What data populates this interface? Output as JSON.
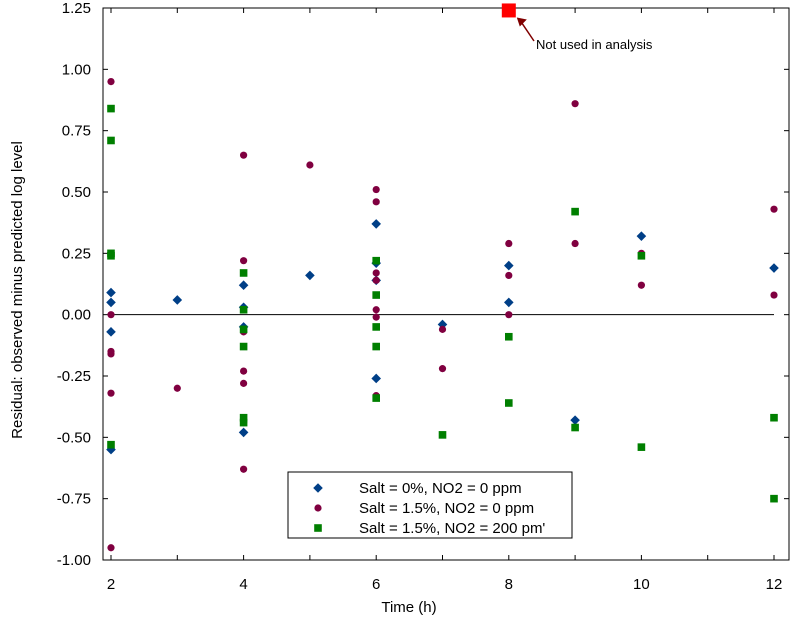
{
  "chart_data": {
    "type": "scatter",
    "title": "",
    "xlabel": "Time (h)",
    "ylabel": "Residual: observed  minus predicted log level",
    "xlim": [
      1.9,
      12.3
    ],
    "ylim": [
      -1.0,
      1.25
    ],
    "x_ticks": [
      "2",
      "4",
      "6",
      "8",
      "10",
      "12"
    ],
    "y_ticks": [
      "1.25",
      "1.00",
      "0.75",
      "0.50",
      "0.25",
      "0.00",
      "-0.25",
      "-0.50",
      "-0.75",
      "-1.00"
    ],
    "zero_line": true,
    "grid": false,
    "legend_position": "bottom-center",
    "series": [
      {
        "name": "Salt = 0%, NO2 = 0 ppm",
        "color": "#003f87",
        "marker": "diamond",
        "points": [
          [
            2,
            0.09
          ],
          [
            2,
            0.05
          ],
          [
            2,
            -0.07
          ],
          [
            2,
            -0.55
          ],
          [
            3,
            0.06
          ],
          [
            4,
            0.12
          ],
          [
            4,
            0.03
          ],
          [
            4,
            -0.05
          ],
          [
            4,
            -0.48
          ],
          [
            5,
            0.16
          ],
          [
            6,
            0.37
          ],
          [
            6,
            0.21
          ],
          [
            6,
            0.14
          ],
          [
            6,
            -0.26
          ],
          [
            7,
            -0.04
          ],
          [
            8,
            0.2
          ],
          [
            8,
            0.05
          ],
          [
            9,
            -0.43
          ],
          [
            10,
            0.32
          ],
          [
            12,
            0.19
          ]
        ]
      },
      {
        "name": "Salt = 1.5%, NO2 = 0 ppm",
        "color": "#800040",
        "marker": "circle",
        "points": [
          [
            2,
            0.95
          ],
          [
            2,
            0.0
          ],
          [
            2,
            -0.15
          ],
          [
            2,
            -0.16
          ],
          [
            2,
            -0.32
          ],
          [
            2,
            -0.95
          ],
          [
            3,
            -0.3
          ],
          [
            4,
            0.65
          ],
          [
            4,
            0.22
          ],
          [
            4,
            -0.07
          ],
          [
            4,
            -0.23
          ],
          [
            4,
            -0.28
          ],
          [
            4,
            -0.44
          ],
          [
            4,
            -0.63
          ],
          [
            5,
            0.61
          ],
          [
            6,
            0.51
          ],
          [
            6,
            0.46
          ],
          [
            6,
            0.17
          ],
          [
            6,
            0.14
          ],
          [
            6,
            0.02
          ],
          [
            6,
            -0.01
          ],
          [
            6,
            -0.33
          ],
          [
            7,
            -0.06
          ],
          [
            7,
            -0.22
          ],
          [
            8,
            0.29
          ],
          [
            8,
            0.16
          ],
          [
            8,
            0.0
          ],
          [
            9,
            0.86
          ],
          [
            9,
            0.29
          ],
          [
            10,
            0.25
          ],
          [
            10,
            0.12
          ],
          [
            12,
            0.43
          ],
          [
            12,
            0.08
          ]
        ]
      },
      {
        "name": "Salt = 1.5%, NO2 = 200 pm'",
        "color": "#007f00",
        "marker": "square",
        "points": [
          [
            2,
            0.84
          ],
          [
            2,
            0.71
          ],
          [
            2,
            0.25
          ],
          [
            2,
            0.24
          ],
          [
            2,
            -0.53
          ],
          [
            4,
            0.17
          ],
          [
            4,
            0.02
          ],
          [
            4,
            -0.06
          ],
          [
            4,
            -0.13
          ],
          [
            4,
            -0.42
          ],
          [
            4,
            -0.44
          ],
          [
            6,
            0.22
          ],
          [
            6,
            0.08
          ],
          [
            6,
            -0.05
          ],
          [
            6,
            -0.13
          ],
          [
            6,
            -0.34
          ],
          [
            7,
            -0.49
          ],
          [
            8,
            -0.09
          ],
          [
            8,
            -0.36
          ],
          [
            9,
            0.42
          ],
          [
            9,
            -0.46
          ],
          [
            10,
            0.24
          ],
          [
            10,
            -0.54
          ],
          [
            12,
            -0.42
          ],
          [
            12,
            -0.75
          ]
        ]
      }
    ],
    "excluded_point": {
      "x": 8,
      "y": 1.24,
      "color": "#ff0000",
      "marker": "square"
    },
    "annotation": {
      "text": "Not used in analysis",
      "arrow_color": "#800000"
    }
  }
}
